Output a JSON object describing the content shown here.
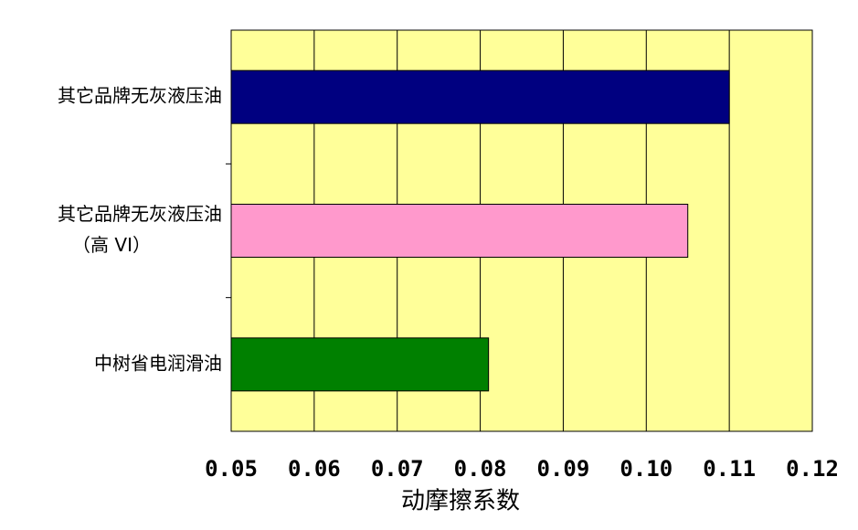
{
  "chart_data": {
    "type": "bar",
    "orientation": "horizontal",
    "x_label": "动摩擦系数",
    "categories": [
      [
        "其它品牌无灰液压油"
      ],
      [
        "其它品牌无灰液压油",
        "（高 VI）"
      ],
      [
        "中树省电润滑油"
      ]
    ],
    "series": [
      {
        "colors": [
          "#000080",
          "#ff99cc",
          "#008000"
        ],
        "values": [
          0.11,
          0.105,
          0.081
        ]
      }
    ],
    "xlim": [
      0.05,
      0.12
    ],
    "xticks": [
      0.05,
      0.06,
      0.07,
      0.08,
      0.09,
      {
        "value": 0.1,
        "label": "0.10"
      },
      0.11,
      0.12
    ],
    "grid": true,
    "plot_background": "#ffff99"
  }
}
